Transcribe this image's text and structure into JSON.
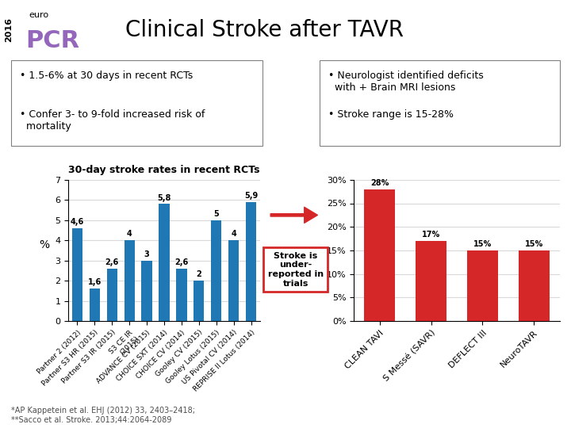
{
  "title": "Clinical Stroke after TAVR",
  "annotations": [
    "2016",
    "euro",
    "PCR",
    "• 1.5-6% at 30 days in recent RCTs",
    "• Confer 3- to 9-fold increased risk of\n  mortality",
    "• Neurologist identified deficits\n  with + Brain MRI lesions",
    "• Stroke range is 15-28%",
    "Stroke is\nunder-\nreported in\ntrials",
    "*AP Kappetein et al. EHJ (2012) 33, 2403–2418;\n**Sacco et al. Stroke. 2013;44:2064-2089"
  ],
  "chart_data": [
    {
      "type": "bar",
      "title": "30-day stroke rates in recent RCTs",
      "ylabel": "%",
      "categories": [
        "Partner 2 (2012)",
        "Partner S3 HR (2015)",
        "Partner S3 IR (2015)",
        "S3 CE IR\n(2015)",
        "ADVANCE CV (2015)",
        "CHOICE SXT (2014)",
        "CHOICE CV (2014)",
        "Gooley CV (2015)",
        "Gooley Lotus (2015)",
        "US Pivotal CV (2014)",
        "REPRISE II Lotus (2014)"
      ],
      "values": [
        4.6,
        1.6,
        2.6,
        4.0,
        3.0,
        5.8,
        2.6,
        2.0,
        5.0,
        4.0,
        5.9
      ],
      "value_labels": [
        "4,6",
        "1,6",
        "2,6",
        "4",
        "3",
        "5,8",
        "2,6",
        "2",
        "5",
        "4",
        "5,9"
      ],
      "data_labels": true,
      "color": "#1f77b4",
      "ylim": [
        0,
        7
      ],
      "yticks": [
        0,
        1,
        2,
        3,
        4,
        5,
        6,
        7
      ],
      "grid": true
    },
    {
      "type": "bar",
      "categories": [
        "CLEAN TAVI",
        "S Messé (SAVR)",
        "DEFLECT III",
        "NeuroTAVR"
      ],
      "values": [
        28,
        17,
        15,
        15
      ],
      "value_labels": [
        "28%",
        "17%",
        "15%",
        "15%"
      ],
      "data_labels": true,
      "color": "#d62728",
      "ylim": [
        0,
        30
      ],
      "yticks": [
        {
          "value": 0,
          "label": "0%"
        },
        {
          "value": 5,
          "label": "5%"
        },
        {
          "value": 10,
          "label": "10%"
        },
        {
          "value": 15,
          "label": "15%"
        },
        {
          "value": 20,
          "label": "20%"
        },
        {
          "value": 25,
          "label": "25%"
        },
        {
          "value": 30,
          "label": "30%"
        }
      ],
      "grid": true
    }
  ]
}
